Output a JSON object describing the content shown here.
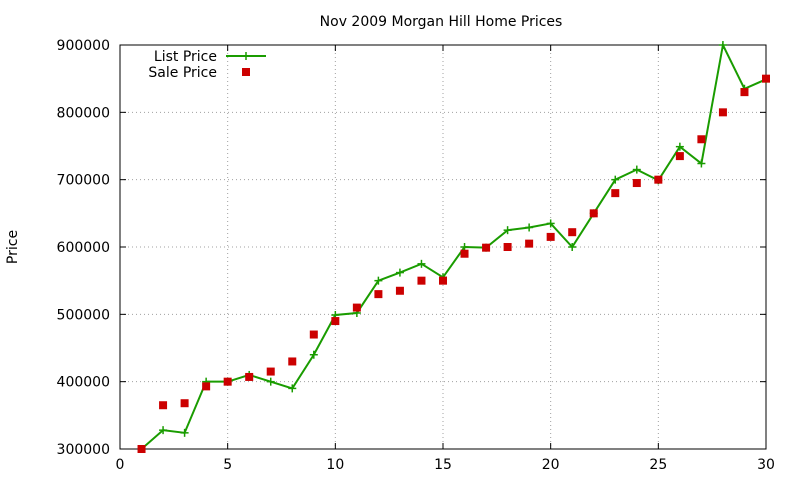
{
  "chart_data": {
    "type": "line",
    "title": "Nov 2009 Morgan Hill Home Prices",
    "xlabel": "",
    "ylabel": "Price",
    "xlim": [
      0,
      30
    ],
    "ylim": [
      300000,
      900000
    ],
    "x_ticks": [
      0,
      5,
      10,
      15,
      20,
      25,
      30
    ],
    "y_ticks": [
      300000,
      400000,
      500000,
      600000,
      700000,
      800000,
      900000
    ],
    "grid": true,
    "legend_position": "top-left",
    "series": [
      {
        "name": "List Price",
        "style": "line-with-plus-markers",
        "color": "#1a9c00",
        "x": [
          1,
          2,
          3,
          4,
          5,
          6,
          7,
          8,
          9,
          10,
          11,
          12,
          13,
          14,
          15,
          16,
          17,
          18,
          19,
          20,
          21,
          22,
          23,
          24,
          25,
          26,
          27,
          28,
          29,
          30
        ],
        "values": [
          300000,
          328000,
          324000,
          400000,
          400000,
          410000,
          400000,
          390000,
          440000,
          499000,
          502000,
          550000,
          562000,
          575000,
          555000,
          600000,
          599000,
          625000,
          629000,
          635000,
          600000,
          650000,
          700000,
          715000,
          699000,
          749000,
          724000,
          900000,
          835000,
          849000
        ]
      },
      {
        "name": "Sale Price",
        "style": "square-markers",
        "color": "#cc0000",
        "x": [
          1,
          2,
          3,
          4,
          5,
          6,
          7,
          8,
          9,
          10,
          11,
          12,
          13,
          14,
          15,
          16,
          17,
          18,
          19,
          20,
          21,
          22,
          23,
          24,
          25,
          26,
          27,
          28,
          29,
          30
        ],
        "values": [
          300000,
          365000,
          368000,
          393000,
          400000,
          407000,
          415000,
          430000,
          470000,
          490000,
          510000,
          530000,
          535000,
          550000,
          550000,
          590000,
          599000,
          600000,
          605000,
          615000,
          622000,
          650000,
          680000,
          695000,
          700000,
          735000,
          760000,
          800000,
          830000,
          850000
        ]
      }
    ]
  }
}
